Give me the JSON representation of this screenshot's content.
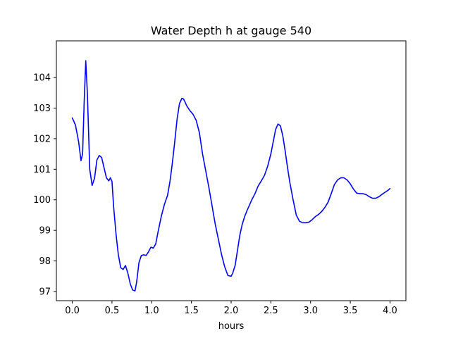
{
  "chart_data": {
    "type": "line",
    "title": "Water Depth h at gauge 540",
    "xlabel": "hours",
    "ylabel": "",
    "xlim": [
      -0.2,
      4.2
    ],
    "ylim": [
      96.7,
      105.2
    ],
    "xticks": [
      0.0,
      0.5,
      1.0,
      1.5,
      2.0,
      2.5,
      3.0,
      3.5,
      4.0
    ],
    "xtick_labels": [
      "0.0",
      "0.5",
      "1.0",
      "1.5",
      "2.0",
      "2.5",
      "3.0",
      "3.5",
      "4.0"
    ],
    "yticks": [
      97,
      98,
      99,
      100,
      101,
      102,
      103,
      104
    ],
    "ytick_labels": [
      "97",
      "98",
      "99",
      "100",
      "101",
      "102",
      "103",
      "104"
    ],
    "grid": false,
    "legend": false,
    "series": [
      {
        "color": "#0000ff",
        "x": [
          0.0,
          0.04,
          0.08,
          0.11,
          0.13,
          0.15,
          0.17,
          0.19,
          0.22,
          0.25,
          0.28,
          0.31,
          0.34,
          0.37,
          0.4,
          0.43,
          0.46,
          0.48,
          0.5,
          0.52,
          0.55,
          0.58,
          0.61,
          0.64,
          0.67,
          0.7,
          0.73,
          0.76,
          0.79,
          0.81,
          0.84,
          0.87,
          0.9,
          0.93,
          0.96,
          0.99,
          1.02,
          1.05,
          1.08,
          1.12,
          1.16,
          1.2,
          1.23,
          1.26,
          1.29,
          1.32,
          1.35,
          1.38,
          1.4,
          1.42,
          1.44,
          1.46,
          1.48,
          1.52,
          1.56,
          1.6,
          1.64,
          1.68,
          1.72,
          1.76,
          1.8,
          1.84,
          1.88,
          1.92,
          1.96,
          2.0,
          2.02,
          2.05,
          2.08,
          2.11,
          2.14,
          2.17,
          2.2,
          2.23,
          2.26,
          2.3,
          2.34,
          2.38,
          2.42,
          2.46,
          2.5,
          2.53,
          2.56,
          2.59,
          2.62,
          2.65,
          2.68,
          2.71,
          2.74,
          2.78,
          2.82,
          2.86,
          2.9,
          2.94,
          2.98,
          3.02,
          3.06,
          3.1,
          3.14,
          3.18,
          3.22,
          3.26,
          3.3,
          3.34,
          3.38,
          3.42,
          3.46,
          3.5,
          3.54,
          3.58,
          3.62,
          3.66,
          3.7,
          3.74,
          3.78,
          3.82,
          3.86,
          3.9,
          3.94,
          3.98,
          4.0
        ],
        "y": [
          102.68,
          102.45,
          101.9,
          101.28,
          101.5,
          103.2,
          104.55,
          103.5,
          101.0,
          100.47,
          100.7,
          101.3,
          101.45,
          101.38,
          101.05,
          100.72,
          100.62,
          100.72,
          100.6,
          99.8,
          98.9,
          98.2,
          97.78,
          97.72,
          97.85,
          97.6,
          97.25,
          97.05,
          97.02,
          97.3,
          97.95,
          98.18,
          98.2,
          98.18,
          98.3,
          98.45,
          98.42,
          98.55,
          98.95,
          99.45,
          99.85,
          100.15,
          100.6,
          101.2,
          101.9,
          102.65,
          103.15,
          103.32,
          103.3,
          103.2,
          103.08,
          103.0,
          102.92,
          102.8,
          102.6,
          102.2,
          101.5,
          100.95,
          100.4,
          99.8,
          99.2,
          98.7,
          98.2,
          97.8,
          97.52,
          97.5,
          97.6,
          97.85,
          98.35,
          98.85,
          99.2,
          99.45,
          99.65,
          99.82,
          100.0,
          100.2,
          100.45,
          100.62,
          100.8,
          101.1,
          101.5,
          101.9,
          102.3,
          102.48,
          102.42,
          102.1,
          101.6,
          101.05,
          100.55,
          100.0,
          99.5,
          99.3,
          99.25,
          99.25,
          99.27,
          99.35,
          99.45,
          99.52,
          99.62,
          99.75,
          99.92,
          100.2,
          100.5,
          100.65,
          100.72,
          100.72,
          100.65,
          100.52,
          100.35,
          100.22,
          100.2,
          100.2,
          100.17,
          100.1,
          100.05,
          100.05,
          100.1,
          100.18,
          100.25,
          100.32,
          100.37
        ]
      }
    ]
  }
}
